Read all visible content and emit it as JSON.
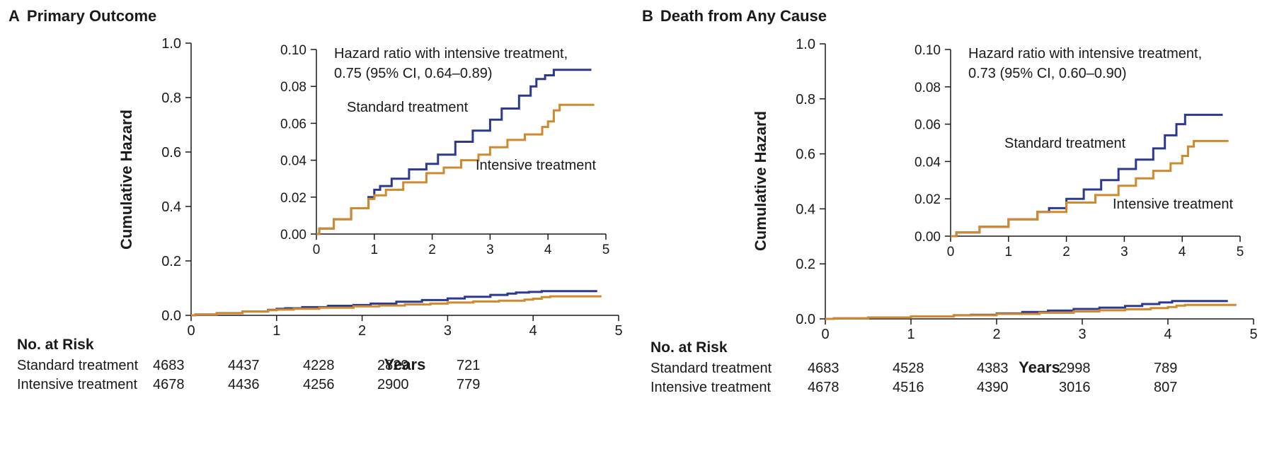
{
  "panels": [
    {
      "letter": "A",
      "title": "Primary Outcome",
      "ylabel": "Cumulative Hazard",
      "xlabel": "Years",
      "x_ticks": [
        "0",
        "1",
        "2",
        "3",
        "4",
        "5"
      ],
      "y_ticks": [
        "0.0",
        "0.2",
        "0.4",
        "0.6",
        "0.8",
        "1.0"
      ],
      "inset": {
        "annotation_line1": "Hazard ratio with intensive treatment,",
        "annotation_line2": "0.75 (95% CI, 0.64–0.89)",
        "x_ticks": [
          "0",
          "1",
          "2",
          "3",
          "4",
          "5"
        ],
        "y_ticks": [
          "0.00",
          "0.02",
          "0.04",
          "0.06",
          "0.08",
          "0.10"
        ],
        "standard_label": "Standard treatment",
        "intensive_label": "Intensive treatment"
      },
      "risk": {
        "header": "No. at Risk",
        "rows": [
          {
            "label": "Standard treatment",
            "values": [
              "4683",
              "4437",
              "4228",
              "2829",
              "721"
            ]
          },
          {
            "label": "Intensive treatment",
            "values": [
              "4678",
              "4436",
              "4256",
              "2900",
              "779"
            ]
          }
        ]
      }
    },
    {
      "letter": "B",
      "title": "Death from Any Cause",
      "ylabel": "Cumulative Hazard",
      "xlabel": "Years",
      "x_ticks": [
        "0",
        "1",
        "2",
        "3",
        "4",
        "5"
      ],
      "y_ticks": [
        "0.0",
        "0.2",
        "0.4",
        "0.6",
        "0.8",
        "1.0"
      ],
      "inset": {
        "annotation_line1": "Hazard ratio with intensive treatment,",
        "annotation_line2": "0.73 (95% CI, 0.60–0.90)",
        "x_ticks": [
          "0",
          "1",
          "2",
          "3",
          "4",
          "5"
        ],
        "y_ticks": [
          "0.00",
          "0.02",
          "0.04",
          "0.06",
          "0.08",
          "0.10"
        ],
        "standard_label": "Standard treatment",
        "intensive_label": "Intensive treatment"
      },
      "risk": {
        "header": "No. at Risk",
        "rows": [
          {
            "label": "Standard treatment",
            "values": [
              "4683",
              "4528",
              "4383",
              "2998",
              "789"
            ]
          },
          {
            "label": "Intensive treatment",
            "values": [
              "4678",
              "4516",
              "4390",
              "3016",
              "807"
            ]
          }
        ]
      }
    }
  ],
  "colors": {
    "standard": "#2b3a8f",
    "intensive": "#d0892f",
    "axis": "#1a1a1a"
  },
  "chart_data": [
    {
      "type": "line",
      "title": "Primary Outcome",
      "xlabel": "Years",
      "ylabel": "Cumulative Hazard",
      "xlim": [
        0,
        5
      ],
      "ylim": [
        0,
        1.0
      ],
      "inset_ylim": [
        0,
        0.1
      ],
      "series": [
        {
          "name": "Standard treatment",
          "x": [
            0,
            0.05,
            0.3,
            0.6,
            0.9,
            1.0,
            1.1,
            1.3,
            1.6,
            1.9,
            2.1,
            2.4,
            2.7,
            3.0,
            3.2,
            3.5,
            3.7,
            3.8,
            3.95,
            4.1,
            4.75
          ],
          "y": [
            0,
            0.003,
            0.008,
            0.014,
            0.02,
            0.024,
            0.026,
            0.03,
            0.035,
            0.038,
            0.043,
            0.05,
            0.056,
            0.062,
            0.068,
            0.075,
            0.08,
            0.084,
            0.086,
            0.089,
            0.089
          ]
        },
        {
          "name": "Intensive treatment",
          "x": [
            0,
            0.05,
            0.3,
            0.6,
            0.9,
            1.0,
            1.2,
            1.5,
            1.9,
            2.2,
            2.5,
            2.8,
            3.0,
            3.3,
            3.6,
            3.9,
            4.0,
            4.1,
            4.2,
            4.8
          ],
          "y": [
            0,
            0.003,
            0.008,
            0.014,
            0.019,
            0.021,
            0.024,
            0.028,
            0.033,
            0.036,
            0.04,
            0.043,
            0.047,
            0.051,
            0.054,
            0.058,
            0.061,
            0.067,
            0.07,
            0.07
          ]
        }
      ]
    },
    {
      "type": "line",
      "title": "Death from Any Cause",
      "xlabel": "Years",
      "ylabel": "Cumulative Hazard",
      "xlim": [
        0,
        5
      ],
      "ylim": [
        0,
        1.0
      ],
      "inset_ylim": [
        0,
        0.1
      ],
      "series": [
        {
          "name": "Standard treatment",
          "x": [
            0,
            0.1,
            0.5,
            1.0,
            1.5,
            1.7,
            2.0,
            2.3,
            2.6,
            2.9,
            3.2,
            3.5,
            3.7,
            3.9,
            4.05,
            4.7
          ],
          "y": [
            0,
            0.002,
            0.005,
            0.009,
            0.013,
            0.015,
            0.02,
            0.025,
            0.03,
            0.036,
            0.041,
            0.047,
            0.054,
            0.06,
            0.065,
            0.065
          ]
        },
        {
          "name": "Intensive treatment",
          "x": [
            0,
            0.1,
            0.5,
            1.0,
            1.5,
            2.0,
            2.5,
            2.9,
            3.2,
            3.5,
            3.8,
            4.0,
            4.1,
            4.2,
            4.8
          ],
          "y": [
            0,
            0.002,
            0.005,
            0.009,
            0.013,
            0.018,
            0.022,
            0.027,
            0.031,
            0.035,
            0.039,
            0.043,
            0.048,
            0.051,
            0.051
          ]
        }
      ]
    }
  ]
}
